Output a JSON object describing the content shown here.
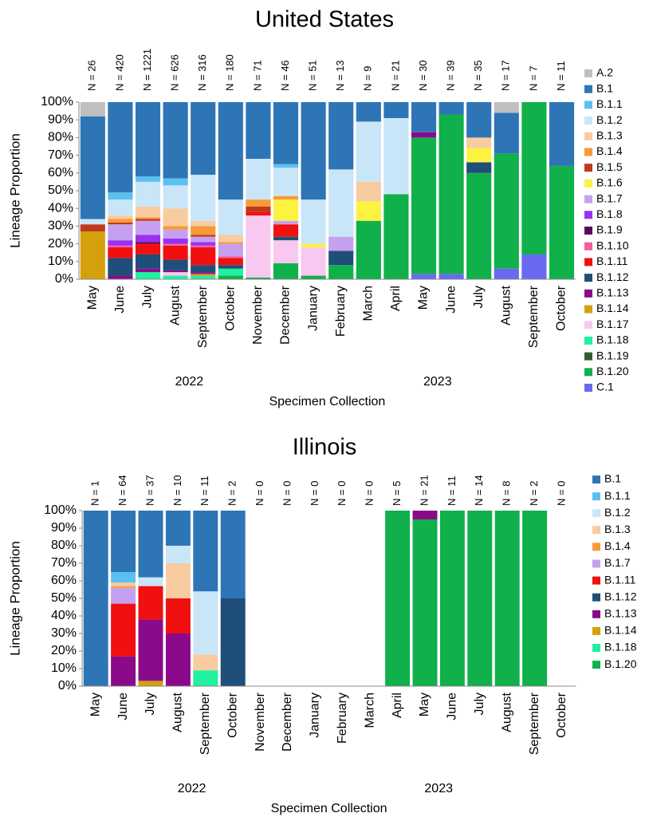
{
  "chart_data": [
    {
      "type": "bar",
      "stacked": true,
      "title": "United States",
      "categories": [
        "May",
        "June",
        "July",
        "August",
        "September",
        "October",
        "November",
        "December",
        "January",
        "February",
        "March",
        "April",
        "May",
        "June",
        "July",
        "August",
        "September",
        "October"
      ],
      "annotations": [
        "N = 26",
        "N = 420",
        "N = 1221",
        "N = 626",
        "N = 316",
        "N = 180",
        "N = 71",
        "N = 46",
        "N = 51",
        "N = 13",
        "N = 9",
        "N = 21",
        "N = 30",
        "N = 39",
        "N = 35",
        "N = 17",
        "N = 7",
        "N = 11"
      ],
      "x_groups": [
        {
          "label": "2022",
          "from": 0,
          "to": 7
        },
        {
          "label": "2023",
          "from": 8,
          "to": 17
        }
      ],
      "xlabel": "Specimen Collection",
      "ylabel": "Lineage Proportion",
      "ylim": [
        0,
        100
      ],
      "yticks": [
        {
          "value": 0,
          "label": "0%"
        },
        {
          "value": 10,
          "label": "10%"
        },
        {
          "value": 20,
          "label": "20%"
        },
        {
          "value": 30,
          "label": "30%"
        },
        {
          "value": 40,
          "label": "40%"
        },
        {
          "value": 50,
          "label": "50%"
        },
        {
          "value": 60,
          "label": "60%"
        },
        {
          "value": 70,
          "label": "70%"
        },
        {
          "value": 80,
          "label": "80%"
        },
        {
          "value": 90,
          "label": "90%"
        },
        {
          "value": 100,
          "label": "100%"
        }
      ],
      "series": [
        {
          "name": "A.2",
          "color": "#bfbfbf",
          "values": [
            8,
            0,
            0,
            0,
            0,
            0,
            0,
            0,
            0,
            0,
            0,
            0,
            0,
            0,
            0,
            6,
            0,
            0
          ]
        },
        {
          "name": "B.1",
          "color": "#2e75b6",
          "values": [
            58,
            51,
            42,
            43,
            41,
            55,
            32,
            35,
            55,
            38,
            11,
            9,
            17,
            7,
            20,
            23,
            0,
            36
          ]
        },
        {
          "name": "B.1.1",
          "color": "#5bc0f0",
          "values": [
            0,
            4,
            3,
            4,
            0,
            0,
            0,
            2,
            0,
            0,
            0,
            0,
            0,
            0,
            0,
            0,
            0,
            0
          ]
        },
        {
          "name": "B.1.2",
          "color": "#c9e6f8",
          "values": [
            3,
            9,
            14,
            13,
            26,
            20,
            23,
            16,
            25,
            38,
            34,
            43,
            0,
            0,
            0,
            0,
            0,
            0
          ]
        },
        {
          "name": "B.1.3",
          "color": "#f8cba0",
          "values": [
            0,
            2,
            6,
            10,
            3,
            4,
            0,
            0,
            0,
            0,
            11,
            0,
            0,
            0,
            6,
            0,
            0,
            0
          ]
        },
        {
          "name": "B.1.4",
          "color": "#f79a3a",
          "values": [
            0,
            2,
            1,
            2,
            5,
            1,
            4,
            2,
            0,
            0,
            0,
            0,
            0,
            0,
            0,
            0,
            0,
            0
          ]
        },
        {
          "name": "B.1.5",
          "color": "#c0391b",
          "values": [
            4,
            1,
            1,
            0,
            1,
            0,
            3,
            0,
            0,
            0,
            0,
            0,
            0,
            0,
            0,
            0,
            0,
            0
          ]
        },
        {
          "name": "B.1.6",
          "color": "#fbf340",
          "values": [
            0,
            0,
            0,
            0,
            0,
            0,
            0,
            12,
            2,
            0,
            11,
            0,
            0,
            0,
            8,
            0,
            0,
            0
          ]
        },
        {
          "name": "B.1.7",
          "color": "#c6a0f0",
          "values": [
            0,
            9,
            8,
            5,
            3,
            7,
            0,
            2,
            0,
            8,
            0,
            0,
            0,
            0,
            0,
            0,
            0,
            0
          ]
        },
        {
          "name": "B.1.8",
          "color": "#9b30f0",
          "values": [
            0,
            3,
            4,
            3,
            2,
            0,
            0,
            0,
            0,
            0,
            0,
            0,
            0,
            0,
            0,
            0,
            0,
            0
          ]
        },
        {
          "name": "B.1.9",
          "color": "#5a0a5a",
          "values": [
            0,
            0,
            1,
            0,
            0,
            0,
            0,
            0,
            0,
            0,
            0,
            0,
            0,
            0,
            0,
            0,
            0,
            0
          ]
        },
        {
          "name": "B.1.10",
          "color": "#f060a0",
          "values": [
            0,
            1,
            0,
            1,
            1,
            1,
            0,
            0,
            0,
            0,
            0,
            0,
            0,
            0,
            0,
            0,
            0,
            0
          ]
        },
        {
          "name": "B.1.11",
          "color": "#f01010",
          "values": [
            0,
            6,
            6,
            8,
            10,
            4,
            2,
            7,
            0,
            0,
            0,
            0,
            0,
            0,
            0,
            0,
            0,
            0
          ]
        },
        {
          "name": "B.1.12",
          "color": "#1f4e79",
          "values": [
            0,
            10,
            8,
            6,
            4,
            2,
            0,
            2,
            0,
            8,
            0,
            0,
            0,
            0,
            6,
            0,
            0,
            0
          ]
        },
        {
          "name": "B.1.13",
          "color": "#8b0a8b",
          "values": [
            0,
            2,
            2,
            1,
            1,
            0,
            0,
            0,
            0,
            0,
            0,
            0,
            3,
            0,
            0,
            0,
            0,
            0
          ]
        },
        {
          "name": "B.1.14",
          "color": "#d4a00c",
          "values": [
            27,
            0,
            0,
            0,
            1,
            0,
            0,
            0,
            0,
            0,
            0,
            0,
            0,
            0,
            0,
            0,
            0,
            0
          ]
        },
        {
          "name": "B.1.17",
          "color": "#f8c8f0",
          "values": [
            0,
            0,
            0,
            2,
            0,
            0,
            35,
            13,
            16,
            0,
            0,
            0,
            0,
            0,
            0,
            0,
            0,
            0
          ]
        },
        {
          "name": "B.1.18",
          "color": "#20f0a0",
          "values": [
            0,
            0,
            4,
            2,
            2,
            4,
            0,
            0,
            0,
            0,
            0,
            0,
            0,
            0,
            0,
            0,
            0,
            0
          ]
        },
        {
          "name": "B.1.19",
          "color": "#2e5e2e",
          "values": [
            0,
            0,
            0,
            0,
            0,
            0,
            0,
            0,
            0,
            0,
            0,
            0,
            0,
            0,
            0,
            0,
            0,
            0
          ]
        },
        {
          "name": "B.1.20",
          "color": "#10b04a",
          "values": [
            0,
            0,
            0,
            0,
            0,
            2,
            1,
            9,
            2,
            8,
            33,
            48,
            77,
            90,
            60,
            65,
            86,
            64
          ]
        },
        {
          "name": "C.1",
          "color": "#6a6af0",
          "values": [
            0,
            0,
            0,
            0,
            0,
            0,
            0,
            0,
            0,
            0,
            0,
            0,
            3,
            3,
            0,
            6,
            14,
            0
          ]
        }
      ]
    },
    {
      "type": "bar",
      "stacked": true,
      "title": "Illinois",
      "categories": [
        "May",
        "June",
        "July",
        "August",
        "September",
        "October",
        "November",
        "December",
        "January",
        "February",
        "March",
        "April",
        "May",
        "June",
        "July",
        "August",
        "September",
        "October"
      ],
      "annotations": [
        "N = 1",
        "N = 64",
        "N = 37",
        "N = 10",
        "N = 11",
        "N = 2",
        "N = 0",
        "N = 0",
        "N = 0",
        "N = 0",
        "N = 0",
        "N = 5",
        "N = 21",
        "N = 11",
        "N = 14",
        "N = 8",
        "N = 2",
        "N = 0"
      ],
      "x_groups": [
        {
          "label": "2022",
          "from": 0,
          "to": 7
        },
        {
          "label": "2023",
          "from": 8,
          "to": 17
        }
      ],
      "xlabel": "Specimen Collection",
      "ylabel": "Lineage Proportion",
      "ylim": [
        0,
        100
      ],
      "yticks": [
        {
          "value": 0,
          "label": "0%"
        },
        {
          "value": 10,
          "label": "10%"
        },
        {
          "value": 20,
          "label": "20%"
        },
        {
          "value": 30,
          "label": "30%"
        },
        {
          "value": 40,
          "label": "40%"
        },
        {
          "value": 50,
          "label": "50%"
        },
        {
          "value": 60,
          "label": "60%"
        },
        {
          "value": 70,
          "label": "70%"
        },
        {
          "value": 80,
          "label": "80%"
        },
        {
          "value": 90,
          "label": "90%"
        },
        {
          "value": 100,
          "label": "100%"
        }
      ],
      "series": [
        {
          "name": "B.1",
          "color": "#2e75b6",
          "values": [
            100,
            35,
            38,
            20,
            46,
            50,
            0,
            0,
            0,
            0,
            0,
            0,
            0,
            0,
            0,
            0,
            0,
            0
          ]
        },
        {
          "name": "B.1.1",
          "color": "#5bc0f0",
          "values": [
            0,
            6,
            0,
            0,
            0,
            0,
            0,
            0,
            0,
            0,
            0,
            0,
            0,
            0,
            0,
            0,
            0,
            0
          ]
        },
        {
          "name": "B.1.2",
          "color": "#c9e6f8",
          "values": [
            0,
            0,
            5,
            10,
            36,
            0,
            0,
            0,
            0,
            0,
            0,
            0,
            0,
            0,
            0,
            0,
            0,
            0
          ]
        },
        {
          "name": "B.1.3",
          "color": "#f8cba0",
          "values": [
            0,
            2,
            0,
            20,
            9,
            0,
            0,
            0,
            0,
            0,
            0,
            0,
            0,
            0,
            0,
            0,
            0,
            0
          ]
        },
        {
          "name": "B.1.4",
          "color": "#f79a3a",
          "values": [
            0,
            1,
            0,
            0,
            0,
            0,
            0,
            0,
            0,
            0,
            0,
            0,
            0,
            0,
            0,
            0,
            0,
            0
          ]
        },
        {
          "name": "B.1.7",
          "color": "#c6a0f0",
          "values": [
            0,
            9,
            0,
            0,
            0,
            0,
            0,
            0,
            0,
            0,
            0,
            0,
            0,
            0,
            0,
            0,
            0,
            0
          ]
        },
        {
          "name": "B.1.11",
          "color": "#f01010",
          "values": [
            0,
            30,
            19,
            20,
            0,
            0,
            0,
            0,
            0,
            0,
            0,
            0,
            0,
            0,
            0,
            0,
            0,
            0
          ]
        },
        {
          "name": "B.1.12",
          "color": "#1f4e79",
          "values": [
            0,
            0,
            0,
            0,
            0,
            50,
            0,
            0,
            0,
            0,
            0,
            0,
            0,
            0,
            0,
            0,
            0,
            0
          ]
        },
        {
          "name": "B.1.13",
          "color": "#8b0a8b",
          "values": [
            0,
            17,
            35,
            30,
            0,
            0,
            0,
            0,
            0,
            0,
            0,
            0,
            5,
            0,
            0,
            0,
            0,
            0
          ]
        },
        {
          "name": "B.1.14",
          "color": "#d4a00c",
          "values": [
            0,
            0,
            3,
            0,
            0,
            0,
            0,
            0,
            0,
            0,
            0,
            0,
            0,
            0,
            0,
            0,
            0,
            0
          ]
        },
        {
          "name": "B.1.18",
          "color": "#20f0a0",
          "values": [
            0,
            0,
            0,
            0,
            9,
            0,
            0,
            0,
            0,
            0,
            0,
            0,
            0,
            0,
            0,
            0,
            0,
            0
          ]
        },
        {
          "name": "B.1.20",
          "color": "#10b04a",
          "values": [
            0,
            0,
            0,
            0,
            0,
            0,
            0,
            0,
            0,
            0,
            0,
            100,
            95,
            100,
            100,
            100,
            100,
            0
          ]
        }
      ]
    }
  ]
}
